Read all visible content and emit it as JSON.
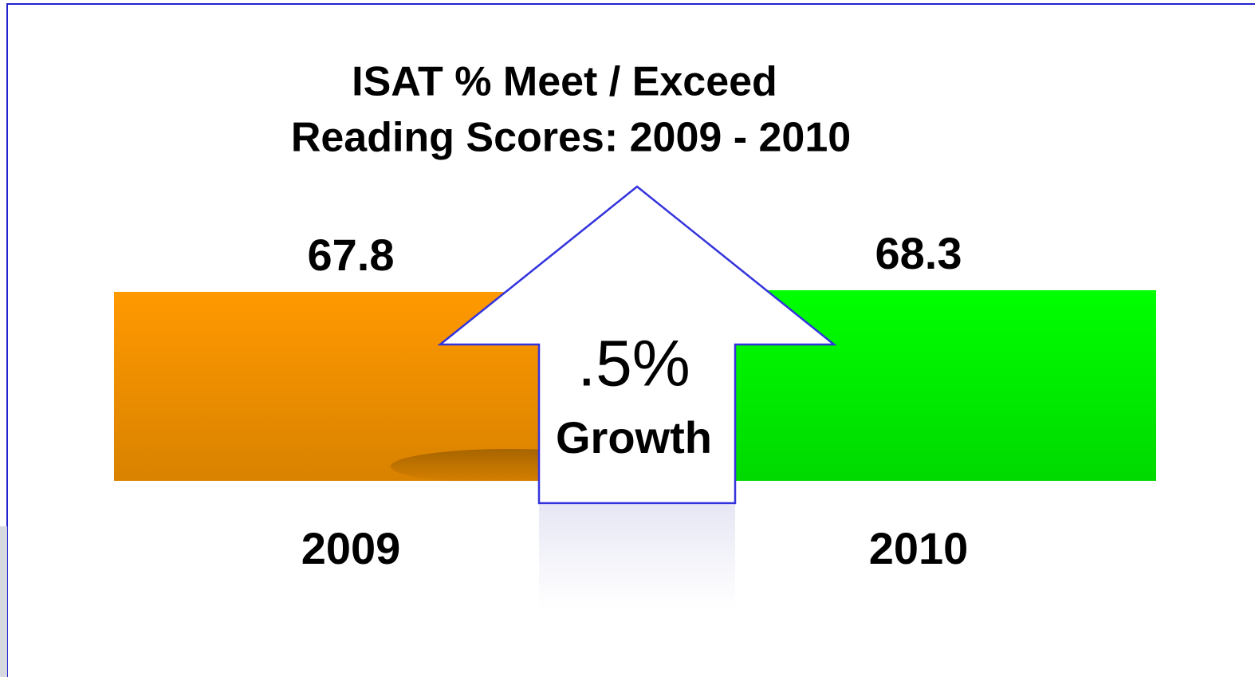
{
  "title": [
    "ISAT % Meet / Exceed",
    "Reading Scores: 2009 - 2010"
  ],
  "items": [
    {
      "value": 67.8,
      "label": "2009",
      "color": "#ff9900"
    },
    {
      "value": 68.3,
      "label": "2010",
      "color": "#00ff00"
    }
  ],
  "arrow": {
    "value": ".5%",
    "label": "Growth"
  }
}
